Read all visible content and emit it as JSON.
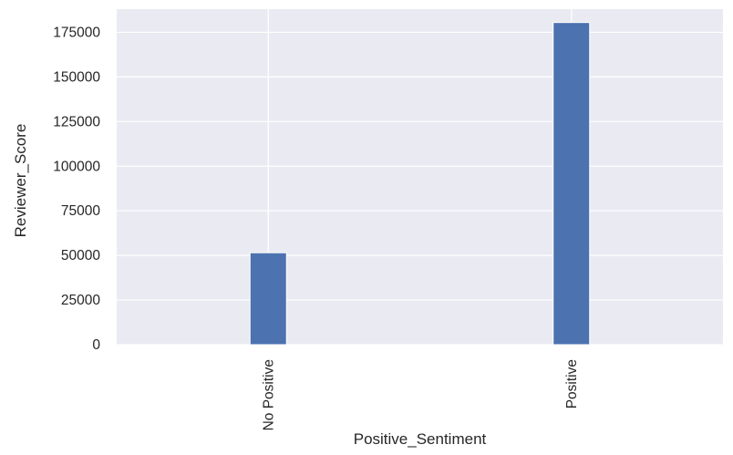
{
  "chart_data": {
    "type": "bar",
    "categories": [
      "No Positive",
      "Positive"
    ],
    "values": [
      51500,
      180500
    ],
    "xlabel": "Positive_Sentiment",
    "ylabel": "Reviewer_Score",
    "ylim": [
      0,
      188000
    ],
    "yticks": [
      0,
      25000,
      50000,
      75000,
      100000,
      125000,
      150000,
      175000
    ],
    "grid": true,
    "legend": "none",
    "colors": {
      "bar": "#4c72b0",
      "plot_background": "#eaeaf2",
      "grid": "#ffffff",
      "text": "#262626"
    }
  }
}
